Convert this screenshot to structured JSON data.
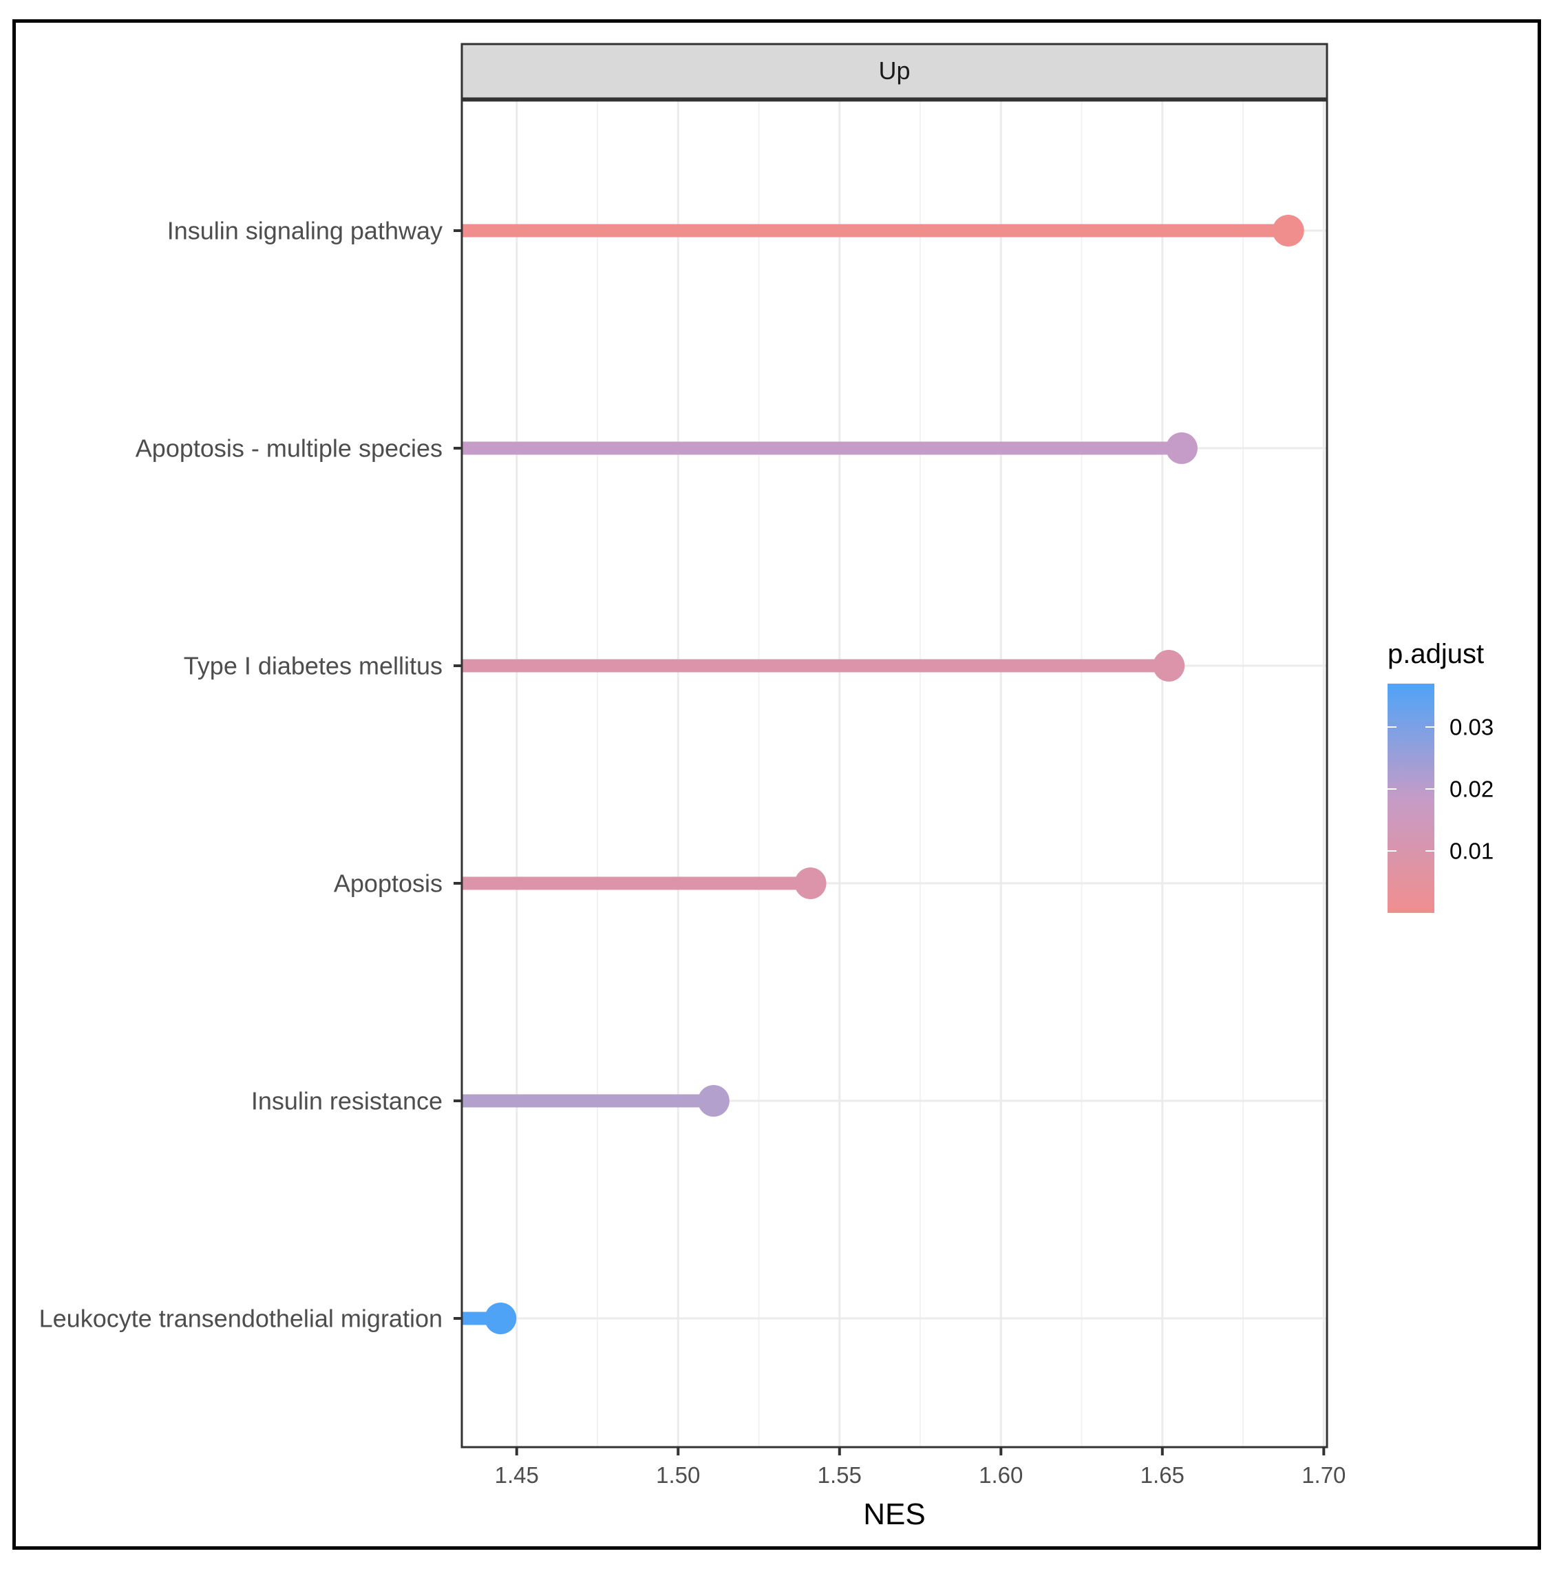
{
  "chart_data": {
    "type": "lollipop",
    "facet": "Up",
    "xlabel": "NES",
    "xlim": [
      1.433,
      1.701
    ],
    "x_ticks": [
      1.45,
      1.5,
      1.55,
      1.6,
      1.65,
      1.7
    ],
    "x_tick_labels": [
      "1.45",
      "1.50",
      "1.55",
      "1.60",
      "1.65",
      "1.70"
    ],
    "grid": true,
    "categories": [
      "Insulin signaling pathway",
      "Apoptosis - multiple species",
      "Type I diabetes mellitus",
      "Apoptosis",
      "Insulin resistance",
      "Leukocyte transendothelial migration"
    ],
    "values": [
      1.689,
      1.656,
      1.652,
      1.541,
      1.511,
      1.445
    ],
    "p_adjust": [
      0.0005,
      0.022,
      0.008,
      0.008,
      0.024,
      0.039
    ],
    "colors": [
      "#F08E8E",
      "#C59CC7",
      "#DC94AA",
      "#DC94AA",
      "#B4A0CD",
      "#4FA3F7"
    ],
    "legend": {
      "title": "p.adjust",
      "position": "right",
      "low_color": "#F08E8E",
      "high_color": "#4FA3F7",
      "range": [
        0.0,
        0.037
      ],
      "ticks": [
        0.01,
        0.02,
        0.03
      ],
      "tick_labels": [
        "0.01",
        "0.02",
        "0.03"
      ]
    }
  }
}
